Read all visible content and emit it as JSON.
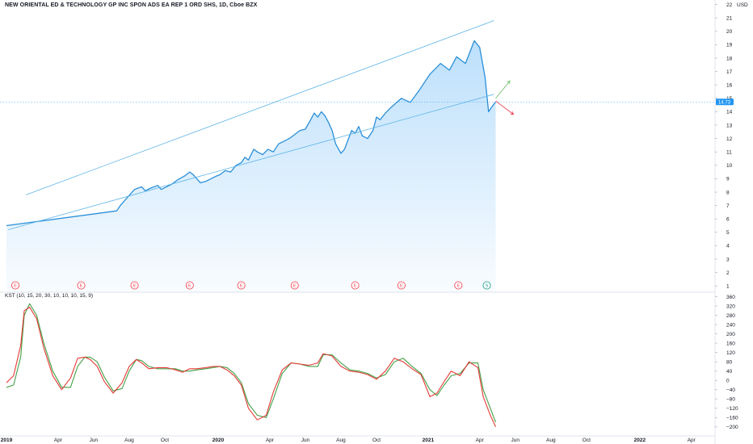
{
  "title": "NEW ORIENTAL ED & TECHNOLOGY GP INC SPON ADS EA REP 1 ORD SHS, 1D, Cboe BZX",
  "colors": {
    "price_line": "#2a8fd8",
    "area_fill": "#2196f3",
    "channel": "#5cb4e8",
    "kst": "#e53935",
    "kst_signal": "#43a047",
    "grid": "#e0e3eb",
    "earnings": "#f23645",
    "split": "#089981",
    "price_tag": "#2196f3"
  },
  "chart_data": [
    {
      "type": "line",
      "name": "price",
      "unit_label": "USD",
      "ylim": [
        0,
        22
      ],
      "yticks": [
        1,
        2,
        3,
        4,
        5,
        6,
        7,
        8,
        9,
        10,
        11,
        12,
        13,
        14,
        15,
        16,
        17,
        18,
        19,
        20,
        21,
        22
      ],
      "last_price": 14.73,
      "last_price_label": "14.73",
      "x_months": [
        0,
        6.2,
        6.4,
        6.8,
        7.2,
        7.6,
        7.8,
        8.1,
        8.5,
        8.7,
        9,
        9.3,
        9.6,
        10,
        10.3,
        10.5,
        10.9,
        11.2,
        11.5,
        11.8,
        12,
        12.3,
        12.6,
        12.9,
        13.2,
        13.4,
        13.6,
        13.9,
        14.1,
        14.4,
        14.7,
        15,
        15.3,
        15.6,
        15.9,
        16.2,
        16.5,
        16.8,
        17.1,
        17.3,
        17.5,
        17.7,
        17.9,
        18.1,
        18.3,
        18.5,
        18.8,
        19,
        19.4,
        19.6,
        19.8,
        20,
        20.3,
        20.6,
        20.8,
        21,
        21.3,
        21.6,
        22.2,
        22.7,
        23.2,
        23.8,
        24.4,
        24.9,
        25.3,
        25.8,
        26.3,
        26.6,
        26.9,
        27.1,
        27.3,
        27.5
      ],
      "x": [
        "2019-01",
        "2019-07",
        "2019-07",
        "2019-07",
        "2019-08",
        "2019-08",
        "2019-08",
        "2019-09",
        "2019-09",
        "2019-09",
        "2019-10",
        "2019-10",
        "2019-10",
        "2019-11",
        "2019-11",
        "2019-11",
        "2019-11",
        "2019-12",
        "2019-12",
        "2019-12",
        "2020-01",
        "2020-01",
        "2020-01",
        "2020-01",
        "2020-02",
        "2020-02",
        "2020-02",
        "2020-02",
        "2020-03",
        "2020-03",
        "2020-03",
        "2020-04",
        "2020-04",
        "2020-04",
        "2020-04",
        "2020-05",
        "2020-05",
        "2020-05",
        "2020-06",
        "2020-06",
        "2020-06",
        "2020-06",
        "2020-06",
        "2020-07",
        "2020-07",
        "2020-07",
        "2020-07",
        "2020-08",
        "2020-08",
        "2020-08",
        "2020-08",
        "2020-09",
        "2020-09",
        "2020-09",
        "2020-09",
        "2020-10",
        "2020-10",
        "2020-10",
        "2020-11",
        "2020-11",
        "2020-12",
        "2020-12",
        "2021-01",
        "2021-01",
        "2021-02",
        "2021-02",
        "2021-03",
        "2021-03",
        "2021-03",
        "2021-04",
        "2021-04",
        "2021-04"
      ],
      "values": [
        5.5,
        6.6,
        7.0,
        7.6,
        8.2,
        8.4,
        8.1,
        8.3,
        8.5,
        8.2,
        8.4,
        8.6,
        8.9,
        9.2,
        9.5,
        9.3,
        8.7,
        8.8,
        9.0,
        9.2,
        9.3,
        9.6,
        9.5,
        10.0,
        10.2,
        10.6,
        10.4,
        11.2,
        11.0,
        10.8,
        11.2,
        11.0,
        11.6,
        11.8,
        12.0,
        12.3,
        12.6,
        12.7,
        13.4,
        13.9,
        13.6,
        14.0,
        13.7,
        13.2,
        12.6,
        11.6,
        10.9,
        11.2,
        12.6,
        12.4,
        12.9,
        12.2,
        12.0,
        12.6,
        13.6,
        13.4,
        13.9,
        14.3,
        15.0,
        14.7,
        15.6,
        16.8,
        17.6,
        17.1,
        18.1,
        17.6,
        19.3,
        18.8,
        16.6,
        14.0,
        14.4,
        14.73
      ]
    },
    {
      "type": "line",
      "name": "KST",
      "label": "KST (10, 15, 20, 30, 10, 10, 10, 15, 9)",
      "ylim": [
        -220,
        380
      ],
      "yticks": [
        360,
        320,
        280,
        240,
        200,
        160,
        120,
        80,
        40,
        0,
        -40,
        -80,
        -120,
        -160,
        -200
      ],
      "ytick_labels": [
        "360",
        "320",
        "280",
        "240",
        "200",
        "160",
        "120",
        "80",
        "40",
        "0",
        "−40",
        "−80",
        "−120",
        "−160",
        "−200"
      ],
      "x_months": [
        0,
        0.4,
        0.8,
        1,
        1.3,
        1.7,
        2.1,
        2.6,
        3.1,
        3.6,
        4,
        4.4,
        4.7,
        5.1,
        5.5,
        6,
        6.5,
        6.9,
        7.3,
        7.6,
        8,
        8.5,
        9,
        9.5,
        9.9,
        10.3,
        10.7,
        11.2,
        11.6,
        12,
        12.4,
        12.8,
        13.2,
        13.6,
        14.1,
        14.6,
        15,
        15.5,
        16,
        16.5,
        17,
        17.5,
        17.8,
        18.3,
        18.8,
        19.3,
        19.8,
        20.3,
        20.8,
        21.3,
        21.8,
        22.3,
        22.8,
        23.3,
        23.8,
        24.2,
        24.6,
        25,
        25.5,
        26,
        26.5,
        26.8,
        27.2,
        27.5
      ],
      "kst": [
        -10,
        20,
        150,
        300,
        315,
        265,
        140,
        20,
        -40,
        10,
        95,
        100,
        90,
        60,
        -5,
        -55,
        -10,
        60,
        90,
        75,
        50,
        55,
        55,
        45,
        35,
        50,
        50,
        55,
        60,
        60,
        45,
        20,
        -20,
        -120,
        -170,
        -150,
        -50,
        45,
        75,
        70,
        65,
        75,
        115,
        105,
        60,
        40,
        35,
        25,
        5,
        40,
        95,
        80,
        50,
        25,
        -70,
        -55,
        -5,
        40,
        20,
        80,
        55,
        -70,
        -150,
        -200
      ],
      "signal": [
        -30,
        -20,
        100,
        280,
        330,
        280,
        160,
        40,
        -30,
        -30,
        60,
        100,
        100,
        80,
        15,
        -45,
        -35,
        40,
        90,
        85,
        60,
        50,
        50,
        50,
        40,
        40,
        45,
        50,
        55,
        60,
        55,
        30,
        -10,
        -100,
        -150,
        -160,
        -80,
        30,
        75,
        70,
        60,
        60,
        110,
        110,
        75,
        45,
        40,
        30,
        10,
        25,
        80,
        95,
        60,
        30,
        -40,
        -65,
        -20,
        20,
        30,
        75,
        75,
        -40,
        -120,
        -180
      ]
    }
  ],
  "x_axis": {
    "labels": [
      {
        "text": "2019",
        "m": 0,
        "bold": true
      },
      {
        "text": "Apr",
        "m": 2.9,
        "bold": false
      },
      {
        "text": "Jun",
        "m": 4.9,
        "bold": false
      },
      {
        "text": "Aug",
        "m": 6.9,
        "bold": false
      },
      {
        "text": "Oct",
        "m": 8.9,
        "bold": false
      },
      {
        "text": "2020",
        "m": 11.9,
        "bold": true
      },
      {
        "text": "Apr",
        "m": 14.8,
        "bold": false
      },
      {
        "text": "Jun",
        "m": 16.8,
        "bold": false
      },
      {
        "text": "Aug",
        "m": 18.8,
        "bold": false
      },
      {
        "text": "Oct",
        "m": 20.8,
        "bold": false
      },
      {
        "text": "2021",
        "m": 23.7,
        "bold": true
      },
      {
        "text": "Apr",
        "m": 26.6,
        "bold": false
      },
      {
        "text": "Jun",
        "m": 28.6,
        "bold": false
      },
      {
        "text": "Aug",
        "m": 30.6,
        "bold": false
      },
      {
        "text": "Oct",
        "m": 32.6,
        "bold": false
      },
      {
        "text": "2022",
        "m": 35.6,
        "bold": true
      },
      {
        "text": "Apr",
        "m": 38.5,
        "bold": false
      }
    ]
  },
  "annotations": {
    "channel_upper": {
      "from": {
        "m": 1.1,
        "v": 7.8
      },
      "to": {
        "m": 27.4,
        "v": 20.8
      }
    },
    "channel_lower": {
      "from": {
        "m": 0.1,
        "v": 5.2
      },
      "to": {
        "m": 27.4,
        "v": 15.3
      }
    },
    "arrow_up": {
      "from": {
        "m": 27.5,
        "v": 15.0
      },
      "to": {
        "m": 28.3,
        "v": 16.3
      }
    },
    "arrow_down": {
      "from": {
        "m": 27.5,
        "v": 14.8
      },
      "to": {
        "m": 28.5,
        "v": 13.8
      }
    },
    "events": [
      {
        "m": 0.5,
        "text": "E",
        "kind": "earnings"
      },
      {
        "m": 4.2,
        "text": "E",
        "kind": "earnings"
      },
      {
        "m": 7.2,
        "text": "E",
        "kind": "earnings"
      },
      {
        "m": 10.3,
        "text": "E",
        "kind": "earnings"
      },
      {
        "m": 13.2,
        "text": "E",
        "kind": "earnings"
      },
      {
        "m": 16.2,
        "text": "E",
        "kind": "earnings"
      },
      {
        "m": 19.6,
        "text": "E",
        "kind": "earnings"
      },
      {
        "m": 22.2,
        "text": "E",
        "kind": "earnings"
      },
      {
        "m": 25.4,
        "text": "E",
        "kind": "earnings"
      },
      {
        "m": 27.0,
        "text": "S",
        "kind": "split"
      }
    ]
  }
}
